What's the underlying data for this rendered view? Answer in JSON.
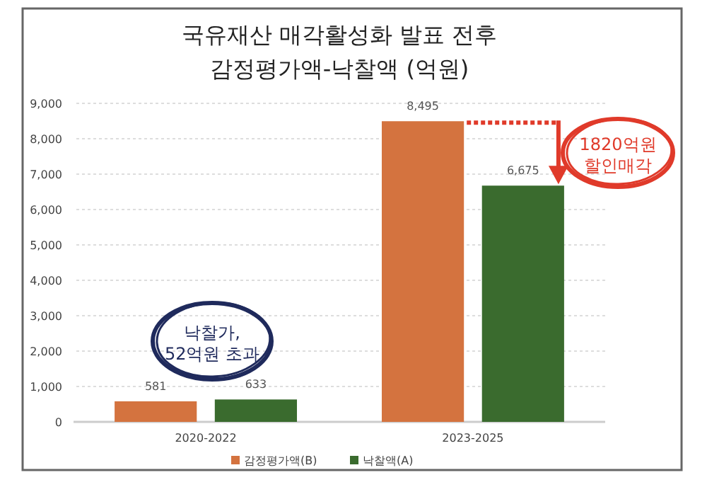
{
  "chart_data": {
    "type": "bar",
    "title": "국유재산 매각활성화 발표 전후\n감정평가액-낙찰액 (억원)",
    "categories": [
      "2020-2022",
      "2023-2025"
    ],
    "series": [
      {
        "name": "감정평가액(B)",
        "color": "#d4733f",
        "values": [
          581,
          8495
        ],
        "value_labels": [
          "581",
          "8,495"
        ]
      },
      {
        "name": "낙찰액(A)",
        "color": "#3a6b2e",
        "values": [
          633,
          6675
        ],
        "value_labels": [
          "633",
          "6,675"
        ]
      }
    ],
    "ylim": [
      0,
      9000
    ],
    "yticks": [
      {
        "value": 0,
        "label": "0"
      },
      {
        "value": 1000,
        "label": "1,000"
      },
      {
        "value": 2000,
        "label": "2,000"
      },
      {
        "value": 3000,
        "label": "3,000"
      },
      {
        "value": 4000,
        "label": "4,000"
      },
      {
        "value": 5000,
        "label": "5,000"
      },
      {
        "value": 6000,
        "label": "6,000"
      },
      {
        "value": 7000,
        "label": "7,000"
      },
      {
        "value": 8000,
        "label": "8,000"
      },
      {
        "value": 9000,
        "label": "9,000"
      }
    ],
    "grid": "y",
    "legend": "bottom",
    "ref_lines": [
      {
        "axis": "y",
        "value": 8495,
        "color": "#e03a2a",
        "line_style": "dotted"
      }
    ],
    "annotations": [
      "낙찰가,\n52억원 초과",
      "1820억원\n할인매각"
    ]
  }
}
